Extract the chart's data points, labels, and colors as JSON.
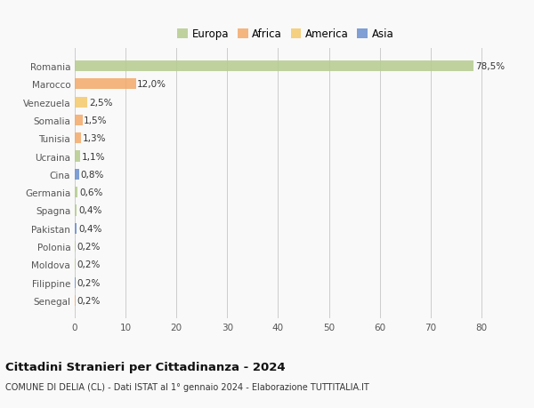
{
  "categories": [
    "Romania",
    "Marocco",
    "Venezuela",
    "Somalia",
    "Tunisia",
    "Ucraina",
    "Cina",
    "Germania",
    "Spagna",
    "Pakistan",
    "Polonia",
    "Moldova",
    "Filippine",
    "Senegal"
  ],
  "values": [
    78.5,
    12.0,
    2.5,
    1.5,
    1.3,
    1.1,
    0.8,
    0.6,
    0.4,
    0.4,
    0.2,
    0.2,
    0.2,
    0.2
  ],
  "labels": [
    "78,5%",
    "12,0%",
    "2,5%",
    "1,5%",
    "1,3%",
    "1,1%",
    "0,8%",
    "0,6%",
    "0,4%",
    "0,4%",
    "0,2%",
    "0,2%",
    "0,2%",
    "0,2%"
  ],
  "colors": [
    "#b5cc8e",
    "#f4a96a",
    "#f4c96a",
    "#f4a96a",
    "#f4a96a",
    "#b5cc8e",
    "#6a8fcf",
    "#b5cc8e",
    "#b5cc8e",
    "#6a8fcf",
    "#b5cc8e",
    "#b5cc8e",
    "#6a8fcf",
    "#f4a96a"
  ],
  "legend_labels": [
    "Europa",
    "Africa",
    "America",
    "Asia"
  ],
  "legend_colors": [
    "#b5cc8e",
    "#f4a96a",
    "#f4c96a",
    "#6a8fcf"
  ],
  "xlim": [
    0,
    83
  ],
  "xticks": [
    0,
    10,
    20,
    30,
    40,
    50,
    60,
    70,
    80
  ],
  "title": "Cittadini Stranieri per Cittadinanza - 2024",
  "subtitle": "COMUNE DI DELIA (CL) - Dati ISTAT al 1° gennaio 2024 - Elaborazione TUTTITALIA.IT",
  "bg_color": "#f9f9f9",
  "grid_color": "#cccccc",
  "bar_height": 0.6
}
